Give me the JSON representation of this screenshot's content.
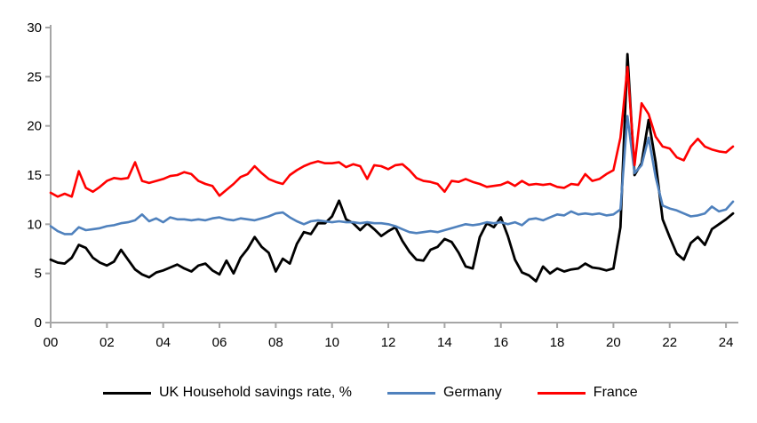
{
  "chart_data": {
    "type": "line",
    "title": "",
    "xlabel": "",
    "ylabel": "",
    "frequency": "quarterly",
    "x_start_year": 2000,
    "x_end_year": 2024,
    "x_tick_labels": [
      "00",
      "02",
      "04",
      "06",
      "08",
      "10",
      "12",
      "14",
      "16",
      "18",
      "20",
      "22",
      "24"
    ],
    "y_ticks": [
      0,
      5,
      10,
      15,
      20,
      25,
      30
    ],
    "ylim": [
      0,
      30
    ],
    "grid": false,
    "legend_position": "bottom",
    "axis_color": "#a6a6a6",
    "tick_label_color": "#000000",
    "series": [
      {
        "name": "UK Household savings rate, %",
        "color": "#000000",
        "stroke_width": 2.8,
        "values": [
          6.4,
          6.1,
          6.0,
          6.6,
          7.9,
          7.6,
          6.6,
          6.1,
          5.8,
          6.2,
          7.4,
          6.4,
          5.4,
          4.9,
          4.6,
          5.1,
          5.3,
          5.6,
          5.9,
          5.5,
          5.2,
          5.8,
          6.0,
          5.3,
          4.9,
          6.3,
          5.0,
          6.6,
          7.5,
          8.7,
          7.7,
          7.1,
          5.2,
          6.5,
          6.0,
          8.0,
          9.2,
          9.0,
          10.1,
          10.1,
          10.8,
          12.4,
          10.5,
          10.1,
          9.4,
          10.1,
          9.5,
          8.8,
          9.3,
          9.7,
          8.3,
          7.2,
          6.4,
          6.3,
          7.4,
          7.7,
          8.5,
          8.2,
          7.1,
          5.7,
          5.5,
          8.7,
          10.1,
          9.7,
          10.7,
          8.8,
          6.4,
          5.1,
          4.8,
          4.2,
          5.7,
          5.0,
          5.5,
          5.2,
          5.4,
          5.5,
          6.0,
          5.6,
          5.5,
          5.3,
          5.5,
          9.7,
          27.3,
          15.0,
          16.2,
          20.6,
          16.3,
          10.5,
          8.7,
          7.0,
          6.4,
          8.1,
          8.7,
          7.9,
          9.5,
          10.0,
          10.5,
          11.1
        ]
      },
      {
        "name": "Germany",
        "color": "#4f81bd",
        "stroke_width": 2.6,
        "values": [
          9.8,
          9.3,
          9.0,
          9.0,
          9.7,
          9.4,
          9.5,
          9.6,
          9.8,
          9.9,
          10.1,
          10.2,
          10.4,
          11.0,
          10.3,
          10.6,
          10.2,
          10.7,
          10.5,
          10.5,
          10.4,
          10.5,
          10.4,
          10.6,
          10.7,
          10.5,
          10.4,
          10.6,
          10.5,
          10.4,
          10.6,
          10.8,
          11.1,
          11.2,
          10.7,
          10.3,
          10.0,
          10.3,
          10.4,
          10.3,
          10.2,
          10.3,
          10.2,
          10.2,
          10.1,
          10.2,
          10.1,
          10.1,
          10.0,
          9.8,
          9.5,
          9.2,
          9.1,
          9.2,
          9.3,
          9.2,
          9.4,
          9.6,
          9.8,
          10.0,
          9.9,
          10.0,
          10.2,
          10.1,
          10.2,
          10.0,
          10.2,
          9.9,
          10.5,
          10.6,
          10.4,
          10.7,
          11.0,
          10.9,
          11.3,
          11.0,
          11.1,
          11.0,
          11.1,
          10.9,
          11.0,
          11.5,
          21.0,
          15.2,
          16.0,
          18.8,
          14.8,
          11.9,
          11.6,
          11.4,
          11.1,
          10.8,
          10.9,
          11.1,
          11.8,
          11.3,
          11.5,
          12.3
        ]
      },
      {
        "name": "France",
        "color": "#ff0000",
        "stroke_width": 2.6,
        "values": [
          13.2,
          12.8,
          13.1,
          12.8,
          15.4,
          13.7,
          13.3,
          13.8,
          14.4,
          14.7,
          14.6,
          14.7,
          16.3,
          14.4,
          14.2,
          14.4,
          14.6,
          14.9,
          15.0,
          15.3,
          15.1,
          14.4,
          14.1,
          13.9,
          12.9,
          13.5,
          14.1,
          14.8,
          15.1,
          15.9,
          15.2,
          14.6,
          14.3,
          14.1,
          15.0,
          15.5,
          15.9,
          16.2,
          16.4,
          16.2,
          16.2,
          16.3,
          15.8,
          16.1,
          15.9,
          14.6,
          16.0,
          15.9,
          15.6,
          16.0,
          16.1,
          15.5,
          14.7,
          14.4,
          14.3,
          14.1,
          13.3,
          14.4,
          14.3,
          14.6,
          14.3,
          14.1,
          13.8,
          13.9,
          14.0,
          14.3,
          13.9,
          14.4,
          14.0,
          14.1,
          14.0,
          14.1,
          13.8,
          13.7,
          14.1,
          14.0,
          15.1,
          14.4,
          14.6,
          15.1,
          15.5,
          18.8,
          26.0,
          16.0,
          22.3,
          21.2,
          18.9,
          17.9,
          17.7,
          16.8,
          16.5,
          17.9,
          18.7,
          17.9,
          17.6,
          17.4,
          17.3,
          17.9
        ]
      }
    ]
  }
}
